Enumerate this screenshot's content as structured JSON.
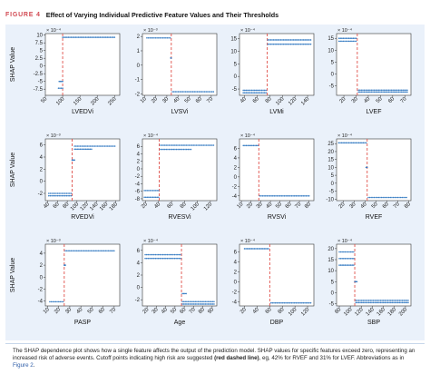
{
  "figure": {
    "tag": "FIGURE 4",
    "title": "Effect of Varying Individual Predictive Feature Values and Their Thresholds",
    "caption_part1": "The SHAP dependence plot shows how a single feature affects the output of the prediction model. SHAP values for specific features exceed zero, representing an increased risk of adverse events. Cutoff points indicating high risk are suggested ",
    "caption_bold": "(red dashed line)",
    "caption_part2": ", eg, 42% for RVEF and 31% for LVEF. Abbreviations as in ",
    "caption_link": "Figure 2",
    "caption_end": "."
  },
  "y_axis_label": "SHAP Value",
  "colors": {
    "points": "#3b7fc4",
    "cutoff": "#e0504a",
    "tag": "#d24a53",
    "panel_bg": "#eaf1fa"
  },
  "chart_data": [
    {
      "type": "scatter",
      "xlabel": "LVEDVi",
      "multiplier": "× 10⁻⁴",
      "xticks": [
        "50",
        "100",
        "150",
        "200",
        "250"
      ],
      "xlim": [
        50,
        265
      ],
      "yticks": [
        "10",
        "7.5",
        "5",
        "2.5",
        "0",
        "-2.5",
        "-5",
        "-7.5"
      ],
      "ylim": [
        -9.5,
        10.5
      ],
      "cutoff": 100,
      "segments": [
        {
          "x": [
            90,
            100
          ],
          "y": -5.0
        },
        {
          "x": [
            88,
            100
          ],
          "y": -7.2
        },
        {
          "x": [
            100,
            250
          ],
          "y": 9.3
        }
      ]
    },
    {
      "type": "scatter",
      "xlabel": "LVSVi",
      "multiplier": "× 10⁻³",
      "xticks": [
        "10",
        "20",
        "30",
        "40",
        "50",
        "60",
        "70"
      ],
      "xlim": [
        8,
        75
      ],
      "yticks": [
        "2",
        "1",
        "0",
        "-1",
        "-2"
      ],
      "ylim": [
        -2.1,
        2.2
      ],
      "cutoff": 34,
      "segments": [
        {
          "x": [
            12,
            33
          ],
          "y": 1.9
        },
        {
          "x": [
            35,
            72
          ],
          "y": -1.85
        },
        {
          "x": [
            33.5,
            34
          ],
          "y": 0.5
        }
      ]
    },
    {
      "type": "scatter",
      "xlabel": "LVMi",
      "multiplier": "× 10⁻⁴",
      "xticks": [
        "40",
        "60",
        "80",
        "100",
        "120",
        "140"
      ],
      "xlim": [
        32,
        150
      ],
      "yticks": [
        "15",
        "10",
        "5",
        "0",
        "-5"
      ],
      "ylim": [
        -7.5,
        17
      ],
      "cutoff": 76,
      "segments": [
        {
          "x": [
            38,
            74
          ],
          "y": -5.5
        },
        {
          "x": [
            38,
            74
          ],
          "y": -6.5
        },
        {
          "x": [
            77,
            145
          ],
          "y": 14.5
        },
        {
          "x": [
            77,
            145
          ],
          "y": 12.8
        }
      ]
    },
    {
      "type": "scatter",
      "xlabel": "LVEF",
      "multiplier": "× 10⁻⁴",
      "xticks": [
        "20",
        "30",
        "40",
        "50",
        "60",
        "70"
      ],
      "xlim": [
        14,
        75
      ],
      "yticks": [
        "15",
        "10",
        "5",
        "0",
        "-5"
      ],
      "ylim": [
        -9,
        17
      ],
      "cutoff": 31,
      "segments": [
        {
          "x": [
            16,
            30
          ],
          "y": 15.0
        },
        {
          "x": [
            16,
            30
          ],
          "y": 13.8
        },
        {
          "x": [
            32,
            72
          ],
          "y": -6.8
        },
        {
          "x": [
            32,
            72
          ],
          "y": -7.6
        }
      ]
    },
    {
      "type": "scatter",
      "xlabel": "RVEDVi",
      "multiplier": "× 10⁻³",
      "xticks": [
        "40",
        "60",
        "80",
        "100",
        "120",
        "140",
        "160",
        "180"
      ],
      "xlim": [
        35,
        188
      ],
      "yticks": [
        "6",
        "4",
        "2",
        "0",
        "-2"
      ],
      "ylim": [
        -3.2,
        7
      ],
      "cutoff": 90,
      "segments": [
        {
          "x": [
            42,
            88
          ],
          "y": -2.0
        },
        {
          "x": [
            42,
            88
          ],
          "y": -2.4
        },
        {
          "x": [
            95,
            178
          ],
          "y": 5.8
        },
        {
          "x": [
            95,
            130
          ],
          "y": 5.3
        },
        {
          "x": [
            90,
            95
          ],
          "y": 3.5
        }
      ]
    },
    {
      "type": "scatter",
      "xlabel": "RVESVi",
      "multiplier": "× 10⁻⁴",
      "xticks": [
        "20",
        "40",
        "60",
        "80",
        "100",
        "120"
      ],
      "xlim": [
        15,
        130
      ],
      "yticks": [
        "6",
        "4",
        "2",
        "0",
        "-2",
        "-4",
        "-6",
        "-8"
      ],
      "ylim": [
        -8.5,
        8
      ],
      "cutoff": 41,
      "segments": [
        {
          "x": [
            18,
            40
          ],
          "y": -5.8
        },
        {
          "x": [
            18,
            40
          ],
          "y": -7.6
        },
        {
          "x": [
            43,
            125
          ],
          "y": 6.3
        },
        {
          "x": [
            43,
            90
          ],
          "y": 5.2
        }
      ]
    },
    {
      "type": "scatter",
      "xlabel": "RVSVi",
      "multiplier": "× 10⁻⁴",
      "xticks": [
        "10",
        "20",
        "30",
        "40",
        "50",
        "60",
        "70",
        "80"
      ],
      "xlim": [
        8,
        85
      ],
      "yticks": [
        "6",
        "4",
        "2",
        "0",
        "-2",
        "-4"
      ],
      "ylim": [
        -5,
        8
      ],
      "cutoff": 28,
      "segments": [
        {
          "x": [
            12,
            27
          ],
          "y": 6.6
        },
        {
          "x": [
            29,
            80
          ],
          "y": -4.0
        }
      ]
    },
    {
      "type": "scatter",
      "xlabel": "RVEF",
      "multiplier": "× 10⁻⁴",
      "xticks": [
        "20",
        "30",
        "40",
        "50",
        "60",
        "70",
        "80"
      ],
      "xlim": [
        14,
        82
      ],
      "yticks": [
        "25",
        "20",
        "15",
        "10",
        "5",
        "0",
        "-5",
        "-10"
      ],
      "ylim": [
        -11,
        28
      ],
      "cutoff": 42,
      "segments": [
        {
          "x": [
            16,
            41
          ],
          "y": 25.5
        },
        {
          "x": [
            43,
            78
          ],
          "y": -9.0
        },
        {
          "x": [
            41,
            42
          ],
          "y": 10.0
        }
      ]
    },
    {
      "type": "scatter",
      "xlabel": "PASP",
      "multiplier": "× 10⁻³",
      "xticks": [
        "10",
        "20",
        "30",
        "40",
        "50",
        "60",
        "70"
      ],
      "xlim": [
        8,
        75
      ],
      "yticks": [
        "4",
        "2",
        "0",
        "-2",
        "-4"
      ],
      "ylim": [
        -4.8,
        5.5
      ],
      "cutoff": 25,
      "segments": [
        {
          "x": [
            12,
            24
          ],
          "y": -4.1
        },
        {
          "x": [
            26,
            70
          ],
          "y": 4.4
        },
        {
          "x": [
            25,
            26
          ],
          "y": 2.0
        }
      ]
    },
    {
      "type": "scatter",
      "xlabel": "Age",
      "multiplier": "× 10⁻⁴",
      "xticks": [
        "20",
        "30",
        "40",
        "50",
        "60",
        "70",
        "80",
        "90"
      ],
      "xlim": [
        15,
        95
      ],
      "yticks": [
        "6",
        "4",
        "2",
        "0",
        "-2"
      ],
      "ylim": [
        -3,
        7
      ],
      "cutoff": 57,
      "segments": [
        {
          "x": [
            18,
            56
          ],
          "y": 5.3
        },
        {
          "x": [
            18,
            56
          ],
          "y": 4.7
        },
        {
          "x": [
            58,
            92
          ],
          "y": -2.3
        },
        {
          "x": [
            58,
            92
          ],
          "y": -2.7
        },
        {
          "x": [
            58,
            62
          ],
          "y": -1.0
        }
      ]
    },
    {
      "type": "scatter",
      "xlabel": "DBP",
      "multiplier": "× 10⁻⁴",
      "xticks": [
        "20",
        "40",
        "60",
        "80",
        "100",
        "120"
      ],
      "xlim": [
        12,
        130
      ],
      "yticks": [
        "6",
        "4",
        "2",
        "0",
        "-2",
        "-4"
      ],
      "ylim": [
        -4.8,
        7.5
      ],
      "cutoff": 60,
      "segments": [
        {
          "x": [
            20,
            58
          ],
          "y": 6.6
        },
        {
          "x": [
            62,
            125
          ],
          "y": -4.2
        }
      ]
    },
    {
      "type": "scatter",
      "xlabel": "SBP",
      "multiplier": "× 10⁻⁴",
      "xticks": [
        "80",
        "100",
        "120",
        "140",
        "160",
        "180",
        "200"
      ],
      "xlim": [
        75,
        210
      ],
      "yticks": [
        "20",
        "15",
        "10",
        "5",
        "0",
        "-5"
      ],
      "ylim": [
        -6,
        22
      ],
      "cutoff": 108,
      "segments": [
        {
          "x": [
            80,
            106
          ],
          "y": 18.5
        },
        {
          "x": [
            80,
            106
          ],
          "y": 15.5
        },
        {
          "x": [
            80,
            106
          ],
          "y": 12.5
        },
        {
          "x": [
            110,
            205
          ],
          "y": -4.5
        },
        {
          "x": [
            110,
            205
          ],
          "y": -3.5
        },
        {
          "x": [
            108,
            112
          ],
          "y": 5.0
        }
      ]
    }
  ]
}
